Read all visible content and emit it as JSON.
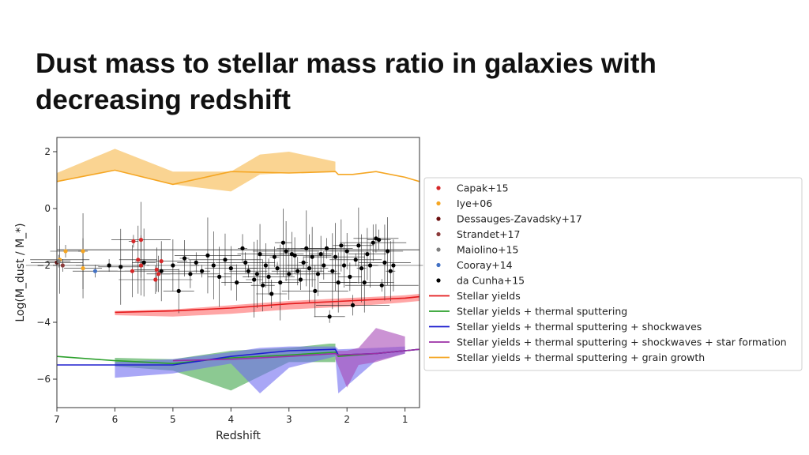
{
  "title": "Dust mass to stellar mass ratio in galaxies with decreasing redshift",
  "chart_data": {
    "type": "scatter",
    "xlabel": "Redshift",
    "ylabel": "Log(M_dust / M_*)",
    "xlim": [
      7,
      0.75
    ],
    "ylim": [
      -7,
      2.5
    ],
    "x_ticks": [
      7,
      6,
      5,
      4,
      3,
      2,
      1
    ],
    "y_ticks": [
      2,
      0,
      -2,
      -4,
      -6
    ],
    "x_axis_reversed": true,
    "grid": false,
    "legend_placement": "outside-right",
    "legend": [
      {
        "label": "Capak+15",
        "kind": "marker",
        "color": "#d62728"
      },
      {
        "label": "Iye+06",
        "kind": "marker",
        "color": "#f5a623"
      },
      {
        "label": "Dessauges-Zavadsky+17",
        "kind": "marker",
        "color": "#6b0f0f"
      },
      {
        "label": "Strandet+17",
        "kind": "marker",
        "color": "#8c3b3b"
      },
      {
        "label": "Maiolino+15",
        "kind": "marker",
        "color": "#7f7f7f"
      },
      {
        "label": "Cooray+14",
        "kind": "marker",
        "color": "#4472c4"
      },
      {
        "label": "da Cunha+15",
        "kind": "marker",
        "color": "#000000"
      },
      {
        "label": "Stellar yields",
        "kind": "line",
        "color": "#e41a1c"
      },
      {
        "label": "Stellar yields + thermal sputtering",
        "kind": "line",
        "color": "#2ca02c"
      },
      {
        "label": "Stellar yields + thermal sputtering + shockwaves",
        "kind": "line",
        "color": "#1f1fcf"
      },
      {
        "label": "Stellar yields + thermal sputtering + shockwaves + star formation",
        "kind": "line",
        "color": "#9b30a6"
      },
      {
        "label": "Stellar yields + thermal sputtering + grain growth",
        "kind": "line",
        "color": "#f5a623"
      }
    ],
    "series": [
      {
        "name": "Capak+15",
        "color": "#d62728",
        "points": [
          [
            5.68,
            -1.15
          ],
          [
            5.55,
            -1.1
          ],
          [
            5.6,
            -1.8
          ],
          [
            5.55,
            -2.0
          ],
          [
            5.7,
            -2.2
          ],
          [
            5.28,
            -2.15
          ],
          [
            5.25,
            -2.3
          ],
          [
            5.3,
            -2.5
          ],
          [
            5.2,
            -1.85
          ]
        ]
      },
      {
        "name": "Iye+06",
        "color": "#f5a623",
        "points": [
          [
            6.85,
            -1.5
          ],
          [
            6.55,
            -1.5
          ],
          [
            6.95,
            -1.8
          ],
          [
            6.55,
            -2.1
          ]
        ]
      },
      {
        "name": "Dessauges-Zavadsky+17",
        "color": "#6b0f0f",
        "points": [
          [
            7.0,
            -1.9
          ]
        ]
      },
      {
        "name": "Strandet+17",
        "color": "#8c3b3b",
        "points": [
          [
            6.9,
            -2.0
          ]
        ]
      },
      {
        "name": "Maiolino+15",
        "color": "#7f7f7f",
        "points": [
          [
            6.97,
            -1.85
          ]
        ]
      },
      {
        "name": "Cooray+14",
        "color": "#4472c4",
        "points": [
          [
            6.34,
            -2.2
          ]
        ]
      },
      {
        "name": "da Cunha+15",
        "color": "#000000",
        "points": [
          [
            6.1,
            -2.0
          ],
          [
            5.9,
            -2.05
          ],
          [
            5.5,
            -1.9
          ],
          [
            5.2,
            -2.2
          ],
          [
            5.0,
            -2.0
          ],
          [
            4.9,
            -2.9
          ],
          [
            4.8,
            -1.75
          ],
          [
            4.7,
            -2.3
          ],
          [
            4.6,
            -1.9
          ],
          [
            4.5,
            -2.2
          ],
          [
            4.4,
            -1.65
          ],
          [
            4.3,
            -2.0
          ],
          [
            4.2,
            -2.4
          ],
          [
            4.1,
            -1.8
          ],
          [
            4.0,
            -2.1
          ],
          [
            3.9,
            -2.6
          ],
          [
            3.8,
            -1.4
          ],
          [
            3.75,
            -1.9
          ],
          [
            3.7,
            -2.2
          ],
          [
            3.6,
            -2.5
          ],
          [
            3.55,
            -2.3
          ],
          [
            3.5,
            -1.6
          ],
          [
            3.45,
            -2.7
          ],
          [
            3.4,
            -2.0
          ],
          [
            3.35,
            -2.4
          ],
          [
            3.3,
            -3.0
          ],
          [
            3.25,
            -1.7
          ],
          [
            3.2,
            -2.1
          ],
          [
            3.15,
            -2.6
          ],
          [
            3.1,
            -1.2
          ],
          [
            3.05,
            -1.5
          ],
          [
            3.0,
            -2.3
          ],
          [
            2.95,
            -1.6
          ],
          [
            2.9,
            -1.65
          ],
          [
            2.85,
            -2.2
          ],
          [
            2.8,
            -2.5
          ],
          [
            2.75,
            -1.9
          ],
          [
            2.7,
            -1.4
          ],
          [
            2.65,
            -2.1
          ],
          [
            2.6,
            -1.7
          ],
          [
            2.55,
            -2.9
          ],
          [
            2.5,
            -2.3
          ],
          [
            2.45,
            -1.6
          ],
          [
            2.4,
            -2.0
          ],
          [
            2.35,
            -1.4
          ],
          [
            2.3,
            -3.8
          ],
          [
            2.25,
            -2.2
          ],
          [
            2.2,
            -1.7
          ],
          [
            2.15,
            -2.6
          ],
          [
            2.1,
            -1.3
          ],
          [
            2.05,
            -2.0
          ],
          [
            2.0,
            -1.5
          ],
          [
            1.95,
            -2.4
          ],
          [
            1.9,
            -3.4
          ],
          [
            1.85,
            -1.8
          ],
          [
            1.8,
            -1.3
          ],
          [
            1.75,
            -2.1
          ],
          [
            1.7,
            -2.6
          ],
          [
            1.65,
            -1.6
          ],
          [
            1.6,
            -2.0
          ],
          [
            1.55,
            -1.2
          ],
          [
            1.5,
            -1.05
          ],
          [
            1.45,
            -1.1
          ],
          [
            1.4,
            -2.7
          ],
          [
            1.35,
            -1.9
          ],
          [
            1.3,
            -1.5
          ],
          [
            1.25,
            -2.2
          ],
          [
            1.2,
            -2.0
          ]
        ]
      }
    ],
    "model_lines": [
      {
        "name": "Stellar yields",
        "color": "#e41a1c",
        "x": [
          6.0,
          5.0,
          4.0,
          3.0,
          2.0,
          1.0,
          0.75
        ],
        "y": [
          -3.65,
          -3.6,
          -3.5,
          -3.35,
          -3.25,
          -3.15,
          -3.1
        ]
      },
      {
        "name": "Stellar yields + thermal sputtering",
        "color": "#2ca02c",
        "x": [
          7.0,
          6.0,
          5.0,
          4.0,
          3.0,
          2.2,
          2.15,
          1.5,
          1.0,
          0.75
        ],
        "y": [
          -5.2,
          -5.35,
          -5.45,
          -5.25,
          -5.15,
          -5.05,
          -5.2,
          -5.1,
          -5.0,
          -4.95
        ]
      },
      {
        "name": "Stellar yields + thermal sputtering + shockwaves",
        "color": "#1f1fcf",
        "x": [
          7.0,
          6.0,
          5.0,
          4.0,
          3.0,
          2.2,
          2.15,
          1.5,
          1.0,
          0.75
        ],
        "y": [
          -5.5,
          -5.5,
          -5.5,
          -5.2,
          -5.0,
          -4.95,
          -5.15,
          -5.1,
          -5.0,
          -4.95
        ]
      },
      {
        "name": "Stellar yields + thermal sputtering + shockwaves + star formation",
        "color": "#9b30a6",
        "x": [
          5.0,
          4.0,
          3.0,
          2.2,
          2.15,
          1.5,
          1.0,
          0.75
        ],
        "y": [
          -5.35,
          -5.3,
          -5.2,
          -5.1,
          -5.15,
          -5.1,
          -5.0,
          -4.95
        ]
      },
      {
        "name": "Stellar yields + thermal sputtering + grain growth",
        "color": "#f5a623",
        "x": [
          7.0,
          6.0,
          5.0,
          4.0,
          3.0,
          2.2,
          2.15,
          1.9,
          1.5,
          1.0,
          0.75
        ],
        "y": [
          0.95,
          1.35,
          0.85,
          1.3,
          1.25,
          1.3,
          1.2,
          1.2,
          1.3,
          1.1,
          0.95
        ]
      }
    ],
    "model_bands": [
      {
        "name": "Stellar yields",
        "color": "#ff6b6b",
        "x": [
          6.0,
          5.0,
          4.0,
          3.0,
          2.0,
          1.0,
          0.75
        ],
        "upper": [
          -3.6,
          -3.55,
          -3.4,
          -3.25,
          -3.15,
          -3.05,
          -3.0
        ],
        "lower": [
          -3.75,
          -3.8,
          -3.7,
          -3.55,
          -3.45,
          -3.3,
          -3.25
        ]
      },
      {
        "name": "Stellar yields + thermal sputtering",
        "color": "#3fa54a",
        "x": [
          6.0,
          5.0,
          4.0,
          3.0,
          2.3,
          2.2
        ],
        "upper": [
          -5.25,
          -5.3,
          -5.0,
          -4.9,
          -4.75,
          -4.75
        ],
        "lower": [
          -5.55,
          -5.7,
          -6.4,
          -5.4,
          -5.4,
          -5.4
        ]
      },
      {
        "name": "Stellar yields + thermal sputtering + shockwaves",
        "color": "#6f6cf0",
        "x": [
          6.0,
          5.0,
          4.0,
          3.5,
          3.0,
          2.2,
          2.15,
          1.5,
          1.0
        ],
        "upper": [
          -5.4,
          -5.3,
          -5.05,
          -4.9,
          -4.85,
          -4.85,
          -4.95,
          -4.9,
          -4.85
        ],
        "lower": [
          -5.95,
          -5.8,
          -5.45,
          -6.5,
          -5.6,
          -5.2,
          -6.5,
          -5.35,
          -5.1
        ]
      },
      {
        "name": "Stellar yields + thermal sputtering + shockwaves + star formation",
        "color": "#a84bb8",
        "x": [
          2.2,
          2.0,
          1.8,
          1.5,
          1.0
        ],
        "upper": [
          -5.0,
          -5.0,
          -4.9,
          -4.2,
          -4.5
        ],
        "lower": [
          -5.3,
          -6.3,
          -5.5,
          -5.4,
          -5.1
        ]
      },
      {
        "name": "Stellar yields + thermal sputtering + grain growth",
        "color": "#f7b84a",
        "x": [
          7.0,
          6.0,
          5.0,
          4.0,
          3.5,
          3.0,
          2.2
        ],
        "upper": [
          1.25,
          2.1,
          1.3,
          1.3,
          1.9,
          2.0,
          1.65
        ],
        "lower": [
          0.95,
          1.35,
          0.85,
          0.6,
          1.2,
          1.25,
          1.3
        ]
      }
    ],
    "reference_line": {
      "x": [
        7.0,
        0.75
      ],
      "y": [
        -1.45,
        -1.45
      ]
    }
  }
}
